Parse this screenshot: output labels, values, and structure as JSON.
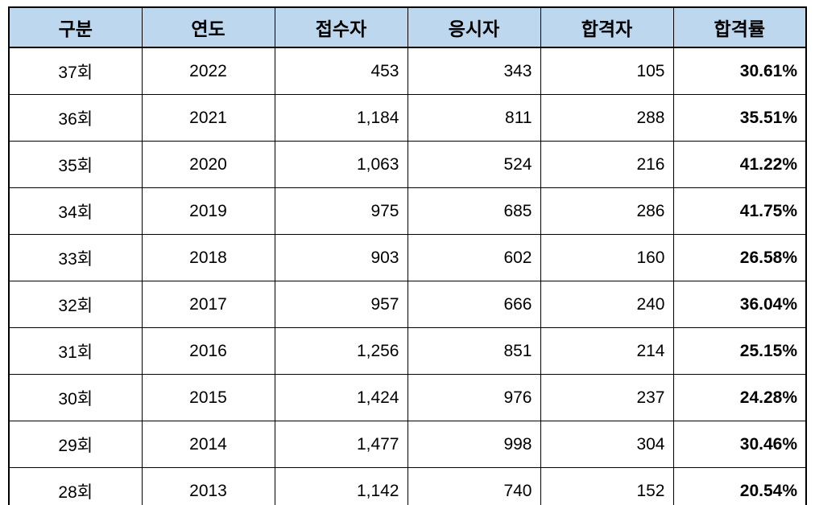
{
  "colors": {
    "header_bg": "#BDD7EE",
    "header_text": "#000000",
    "body_text": "#000000",
    "pass_rate_text": "#0070C0",
    "border": "#000000",
    "page_bg": "#FFFFFF"
  },
  "chart_data": {
    "type": "table",
    "columns": [
      {
        "key": "session",
        "label": "구분"
      },
      {
        "key": "year",
        "label": "연도"
      },
      {
        "key": "applicants",
        "label": "접수자"
      },
      {
        "key": "examinees",
        "label": "응시자"
      },
      {
        "key": "passers",
        "label": "합격자"
      },
      {
        "key": "pass-rate",
        "label": "합격률"
      }
    ],
    "rows": [
      [
        "37회",
        "2022",
        "453",
        "343",
        "105",
        "30.61%"
      ],
      [
        "36회",
        "2021",
        "1,184",
        "811",
        "288",
        "35.51%"
      ],
      [
        "35회",
        "2020",
        "1,063",
        "524",
        "216",
        "41.22%"
      ],
      [
        "34회",
        "2019",
        "975",
        "685",
        "286",
        "41.75%"
      ],
      [
        "33회",
        "2018",
        "903",
        "602",
        "160",
        "26.58%"
      ],
      [
        "32회",
        "2017",
        "957",
        "666",
        "240",
        "36.04%"
      ],
      [
        "31회",
        "2016",
        "1,256",
        "851",
        "214",
        "25.15%"
      ],
      [
        "30회",
        "2015",
        "1,424",
        "976",
        "237",
        "24.28%"
      ],
      [
        "29회",
        "2014",
        "1,477",
        "998",
        "304",
        "30.46%"
      ],
      [
        "28회",
        "2013",
        "1,142",
        "740",
        "152",
        "20.54%"
      ]
    ],
    "numeric_rows": [
      {
        "session": 37,
        "year": 2022,
        "applicants": 453,
        "examinees": 343,
        "passers": 105,
        "pass_rate_pct": 30.61
      },
      {
        "session": 36,
        "year": 2021,
        "applicants": 1184,
        "examinees": 811,
        "passers": 288,
        "pass_rate_pct": 35.51
      },
      {
        "session": 35,
        "year": 2020,
        "applicants": 1063,
        "examinees": 524,
        "passers": 216,
        "pass_rate_pct": 41.22
      },
      {
        "session": 34,
        "year": 2019,
        "applicants": 975,
        "examinees": 685,
        "passers": 286,
        "pass_rate_pct": 41.75
      },
      {
        "session": 33,
        "year": 2018,
        "applicants": 903,
        "examinees": 602,
        "passers": 160,
        "pass_rate_pct": 26.58
      },
      {
        "session": 32,
        "year": 2017,
        "applicants": 957,
        "examinees": 666,
        "passers": 240,
        "pass_rate_pct": 36.04
      },
      {
        "session": 31,
        "year": 2016,
        "applicants": 1256,
        "examinees": 851,
        "passers": 214,
        "pass_rate_pct": 25.15
      },
      {
        "session": 30,
        "year": 2015,
        "applicants": 1424,
        "examinees": 976,
        "passers": 237,
        "pass_rate_pct": 24.28
      },
      {
        "session": 29,
        "year": 2014,
        "applicants": 1477,
        "examinees": 998,
        "passers": 304,
        "pass_rate_pct": 30.46
      },
      {
        "session": 28,
        "year": 2013,
        "applicants": 1142,
        "examinees": 740,
        "passers": 152,
        "pass_rate_pct": 20.54
      }
    ]
  }
}
